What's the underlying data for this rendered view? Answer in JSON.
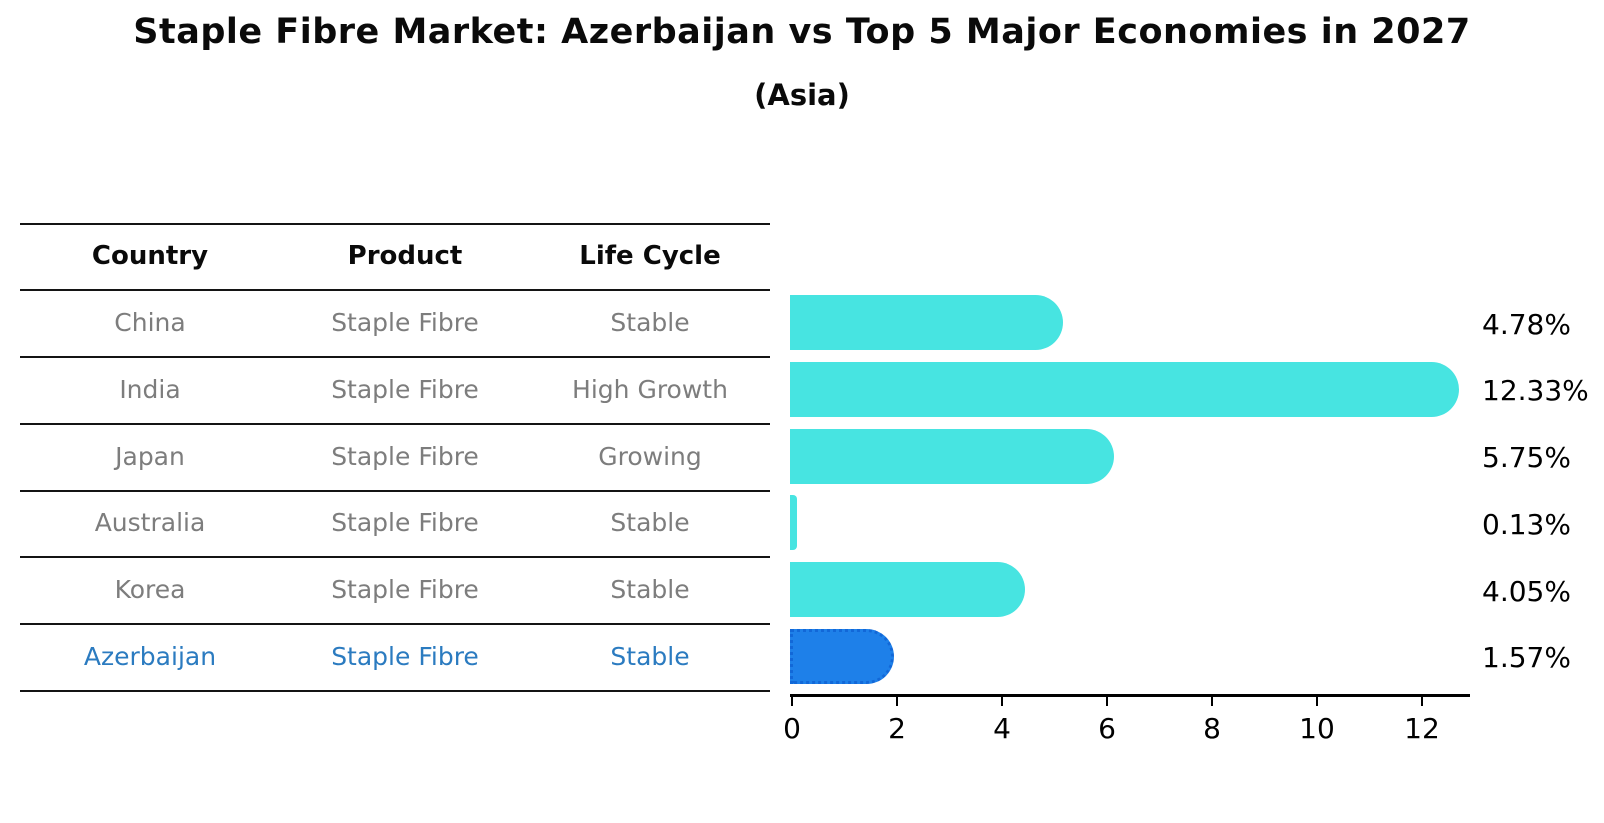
{
  "title": "Staple Fibre Market: Azerbaijan vs Top 5 Major Economies in 2027",
  "subtitle": "(Asia)",
  "table": {
    "headers": [
      "Country",
      "Product",
      "Life Cycle"
    ],
    "rows": [
      {
        "country": "China",
        "product": "Staple Fibre",
        "life_cycle": "Stable",
        "highlight": false
      },
      {
        "country": "India",
        "product": "Staple Fibre",
        "life_cycle": "High Growth",
        "highlight": false
      },
      {
        "country": "Japan",
        "product": "Staple Fibre",
        "life_cycle": "Growing",
        "highlight": false
      },
      {
        "country": "Australia",
        "product": "Staple Fibre",
        "life_cycle": "Stable",
        "highlight": false
      },
      {
        "country": "Korea",
        "product": "Staple Fibre",
        "life_cycle": "Stable",
        "highlight": false
      },
      {
        "country": "Azerbaijan",
        "product": "Staple Fibre",
        "life_cycle": "Stable",
        "highlight": true
      }
    ]
  },
  "chart_data": {
    "type": "bar",
    "orientation": "horizontal",
    "title": "Staple Fibre Market: Azerbaijan vs Top 5 Major Economies in 2027",
    "subtitle": "(Asia)",
    "categories": [
      "China",
      "India",
      "Japan",
      "Australia",
      "Korea",
      "Azerbaijan"
    ],
    "values": [
      4.78,
      12.33,
      5.75,
      0.13,
      4.05,
      1.57
    ],
    "value_labels": [
      "4.78%",
      "12.33%",
      "5.75%",
      "0.13%",
      "4.05%",
      "1.57%"
    ],
    "x_ticks": [
      0,
      2,
      4,
      6,
      8,
      10,
      12
    ],
    "xlim": [
      0,
      13
    ],
    "grid": false,
    "legend": false,
    "highlight_index": 5,
    "colors": {
      "bar": "#47E4E1",
      "highlight_bar": "#1E80E9",
      "highlight_bar_border": "#1268D8",
      "highlight_text": "#2B7BC0",
      "row_text": "#7D7D7D",
      "header_text": "#0A0A0A",
      "axis": "#000000"
    }
  }
}
